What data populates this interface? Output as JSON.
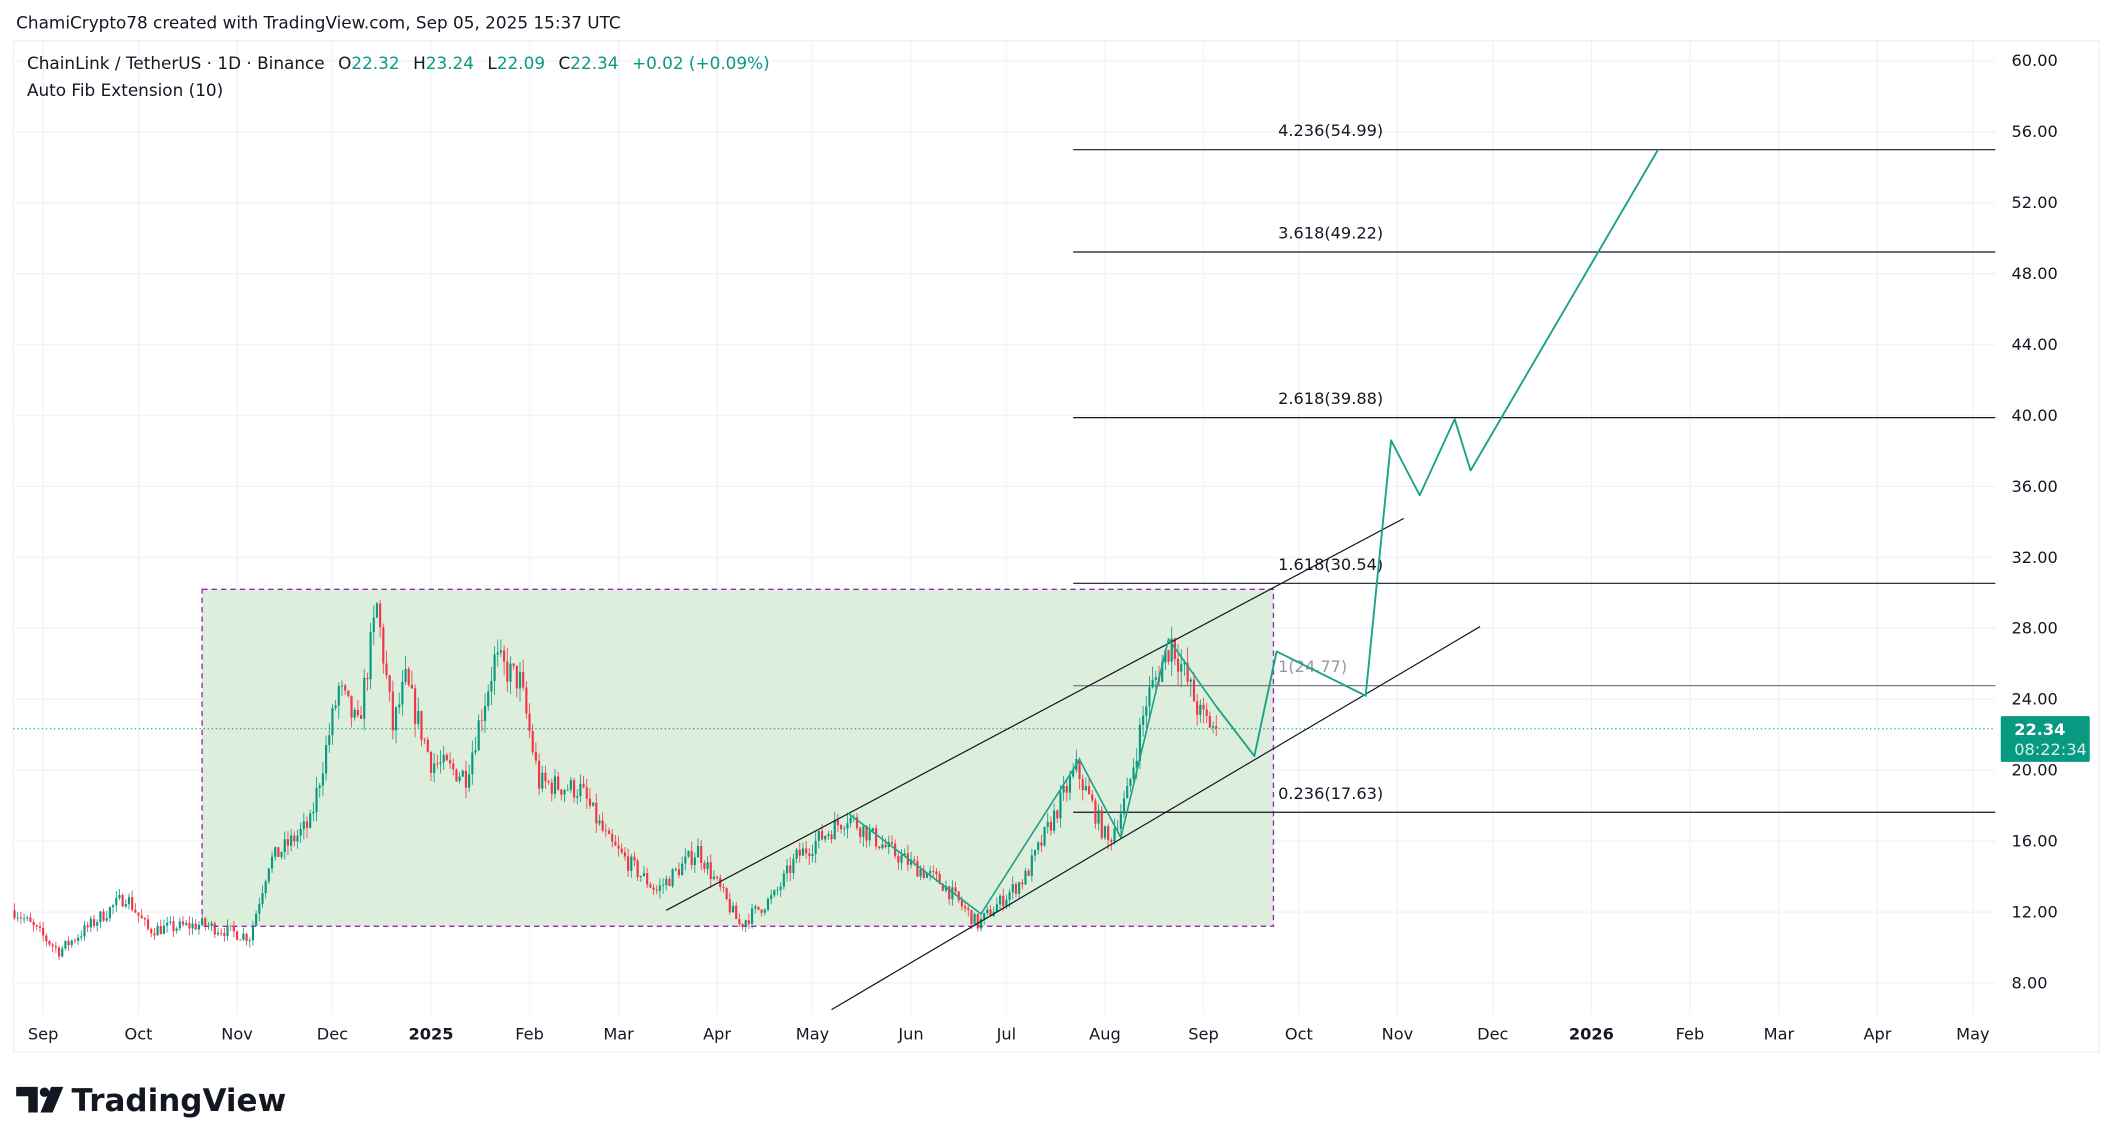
{
  "header": {
    "attribution": "ChamiCrypto78 created with TradingView.com, Sep 05, 2025 15:37 UTC"
  },
  "legend": {
    "symbol": "ChainLink / TetherUS · 1D · Binance",
    "o_label": "O",
    "o_value": "22.32",
    "h_label": "H",
    "h_value": "23.24",
    "l_label": "L",
    "l_value": "22.09",
    "c_label": "C",
    "c_value": "22.34",
    "change": "+0.02 (+0.09%)",
    "indicator": "Auto Fib Extension (10)"
  },
  "price_label": {
    "price": "22.34",
    "countdown": "08:22:34"
  },
  "brand": {
    "name": "TradingView"
  },
  "colors": {
    "up": "#089981",
    "down": "#f23645",
    "zone": "#dcedda",
    "zone_border": "#9c27b0",
    "grid": "#f0f3fa",
    "projection": "#1aa38a"
  },
  "chart_data": {
    "type": "candlestick",
    "title": "ChainLink / TetherUS · 1D · Binance",
    "ylim": [
      5.5,
      61.5
    ],
    "y_ticks": [
      "60.00",
      "56.00",
      "52.00",
      "48.00",
      "44.00",
      "40.00",
      "36.00",
      "32.00",
      "28.00",
      "24.00",
      "20.00",
      "16.00",
      "12.00",
      "8.00"
    ],
    "x_ticks": [
      {
        "label": "Sep",
        "date": "2024-09-01"
      },
      {
        "label": "Oct",
        "date": "2024-10-01"
      },
      {
        "label": "Nov",
        "date": "2024-11-01"
      },
      {
        "label": "Dec",
        "date": "2024-12-01"
      },
      {
        "label": "2025",
        "date": "2025-01-01"
      },
      {
        "label": "Feb",
        "date": "2025-02-01"
      },
      {
        "label": "Mar",
        "date": "2025-03-01"
      },
      {
        "label": "Apr",
        "date": "2025-04-01"
      },
      {
        "label": "May",
        "date": "2025-05-01"
      },
      {
        "label": "Jun",
        "date": "2025-06-01"
      },
      {
        "label": "Jul",
        "date": "2025-07-01"
      },
      {
        "label": "Aug",
        "date": "2025-08-01"
      },
      {
        "label": "Sep",
        "date": "2025-09-01"
      },
      {
        "label": "Oct",
        "date": "2025-10-01"
      },
      {
        "label": "Nov",
        "date": "2025-11-01"
      },
      {
        "label": "Dec",
        "date": "2025-12-01"
      },
      {
        "label": "2026",
        "date": "2026-01-01"
      },
      {
        "label": "Feb",
        "date": "2026-02-01"
      },
      {
        "label": "Mar",
        "date": "2026-03-01"
      },
      {
        "label": "Apr",
        "date": "2026-04-01"
      },
      {
        "label": "May",
        "date": "2026-05-01"
      }
    ],
    "price_path": [
      [
        "2024-08-23",
        12.1
      ],
      [
        "2024-09-06",
        9.8
      ],
      [
        "2024-09-27",
        12.9
      ],
      [
        "2024-10-04",
        11.0
      ],
      [
        "2024-10-21",
        11.3
      ],
      [
        "2024-11-05",
        10.6
      ],
      [
        "2024-11-11",
        14.8
      ],
      [
        "2024-11-24",
        17.0
      ],
      [
        "2024-12-03",
        24.6
      ],
      [
        "2024-12-09",
        22.4
      ],
      [
        "2024-12-15",
        29.2
      ],
      [
        "2024-12-20",
        22.4
      ],
      [
        "2024-12-24",
        25.0
      ],
      [
        "2025-01-01",
        20.5
      ],
      [
        "2025-01-12",
        19.7
      ],
      [
        "2025-01-21",
        26.2
      ],
      [
        "2025-01-29",
        25.0
      ],
      [
        "2025-02-04",
        19.3
      ],
      [
        "2025-02-17",
        18.9
      ],
      [
        "2025-02-26",
        15.9
      ],
      [
        "2025-03-13",
        13.2
      ],
      [
        "2025-03-26",
        15.5
      ],
      [
        "2025-04-08",
        11.3
      ],
      [
        "2025-04-19",
        12.9
      ],
      [
        "2025-04-26",
        15.1
      ],
      [
        "2025-05-12",
        17.4
      ],
      [
        "2025-05-25",
        15.5
      ],
      [
        "2025-06-11",
        13.6
      ],
      [
        "2025-06-22",
        11.3
      ],
      [
        "2025-07-07",
        14.0
      ],
      [
        "2025-07-23",
        20.1
      ],
      [
        "2025-08-02",
        15.9
      ],
      [
        "2025-08-08",
        18.6
      ],
      [
        "2025-08-14",
        23.9
      ],
      [
        "2025-08-22",
        27.3
      ],
      [
        "2025-08-31",
        23.1
      ],
      [
        "2025-09-05",
        22.34
      ]
    ],
    "last_price": 22.34,
    "fib_levels": [
      {
        "label": "4.236(54.99)",
        "value": 54.99,
        "muted": false
      },
      {
        "label": "3.618(49.22)",
        "value": 49.22,
        "muted": false
      },
      {
        "label": "2.618(39.88)",
        "value": 39.88,
        "muted": false
      },
      {
        "label": "1.618(30.54)",
        "value": 30.54,
        "muted": false
      },
      {
        "label": "1(24.77)",
        "value": 24.77,
        "muted": true
      },
      {
        "label": "0.236(17.63)",
        "value": 17.63,
        "muted": false
      }
    ],
    "fib_start": "2025-07-22",
    "range_box": {
      "from": "2024-10-21",
      "to": "2025-09-23",
      "high": 30.2,
      "low": 11.2
    },
    "channel_upper": [
      [
        "2025-03-16",
        12.1
      ],
      [
        "2025-11-03",
        34.2
      ]
    ],
    "channel_lower": [
      [
        "2025-05-07",
        6.5
      ],
      [
        "2025-11-27",
        28.1
      ]
    ],
    "zigzag": [
      [
        "2025-05-12",
        17.6
      ],
      [
        "2025-06-23",
        11.9
      ],
      [
        "2025-07-24",
        20.6
      ],
      [
        "2025-08-06",
        16.2
      ],
      [
        "2025-08-21",
        27.4
      ],
      [
        "2025-09-05",
        23.6
      ]
    ],
    "projection": [
      [
        "2025-09-05",
        23.6
      ],
      [
        "2025-09-17",
        20.8
      ],
      [
        "2025-09-24",
        26.7
      ],
      [
        "2025-10-22",
        24.2
      ],
      [
        "2025-10-30",
        38.6
      ],
      [
        "2025-11-08",
        35.5
      ],
      [
        "2025-11-19",
        39.8
      ],
      [
        "2025-11-24",
        36.9
      ],
      [
        "2026-01-22",
        55.0
      ]
    ]
  }
}
